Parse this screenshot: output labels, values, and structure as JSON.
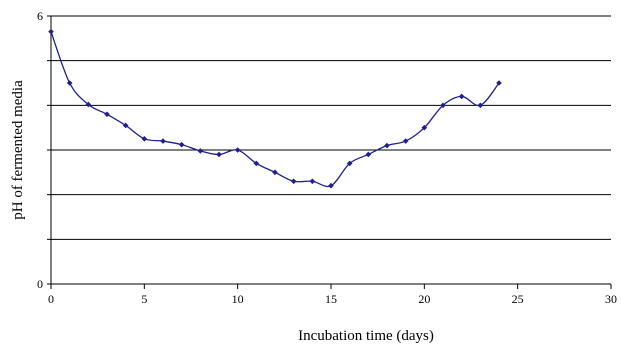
{
  "chart_data": {
    "type": "line",
    "title": "",
    "xlabel": "Incubation time (days)",
    "ylabel": "pH of fermented media",
    "xlim": [
      0,
      30
    ],
    "ylim": [
      0,
      6
    ],
    "x_ticks": [
      0,
      5,
      10,
      15,
      20,
      25,
      30
    ],
    "y_ticks": [
      0,
      6
    ],
    "y_gridlines": [
      1,
      2,
      3,
      4,
      5,
      6
    ],
    "grid": "horizontal",
    "legend": "none",
    "series": [
      {
        "color": "#1f1f8f",
        "marker": "diamond",
        "x": [
          0,
          1,
          2,
          3,
          4,
          5,
          6,
          7,
          8,
          9,
          10,
          11,
          12,
          13,
          14,
          15,
          16,
          17,
          18,
          19,
          20,
          21,
          22,
          23,
          24
        ],
        "y": [
          5.65,
          4.5,
          4.02,
          3.8,
          3.55,
          3.25,
          3.2,
          3.12,
          2.98,
          2.9,
          3.0,
          2.7,
          2.5,
          2.3,
          2.3,
          2.2,
          2.7,
          2.9,
          3.1,
          3.2,
          3.5,
          4.0,
          4.2,
          4.0,
          4.5
        ]
      }
    ]
  }
}
